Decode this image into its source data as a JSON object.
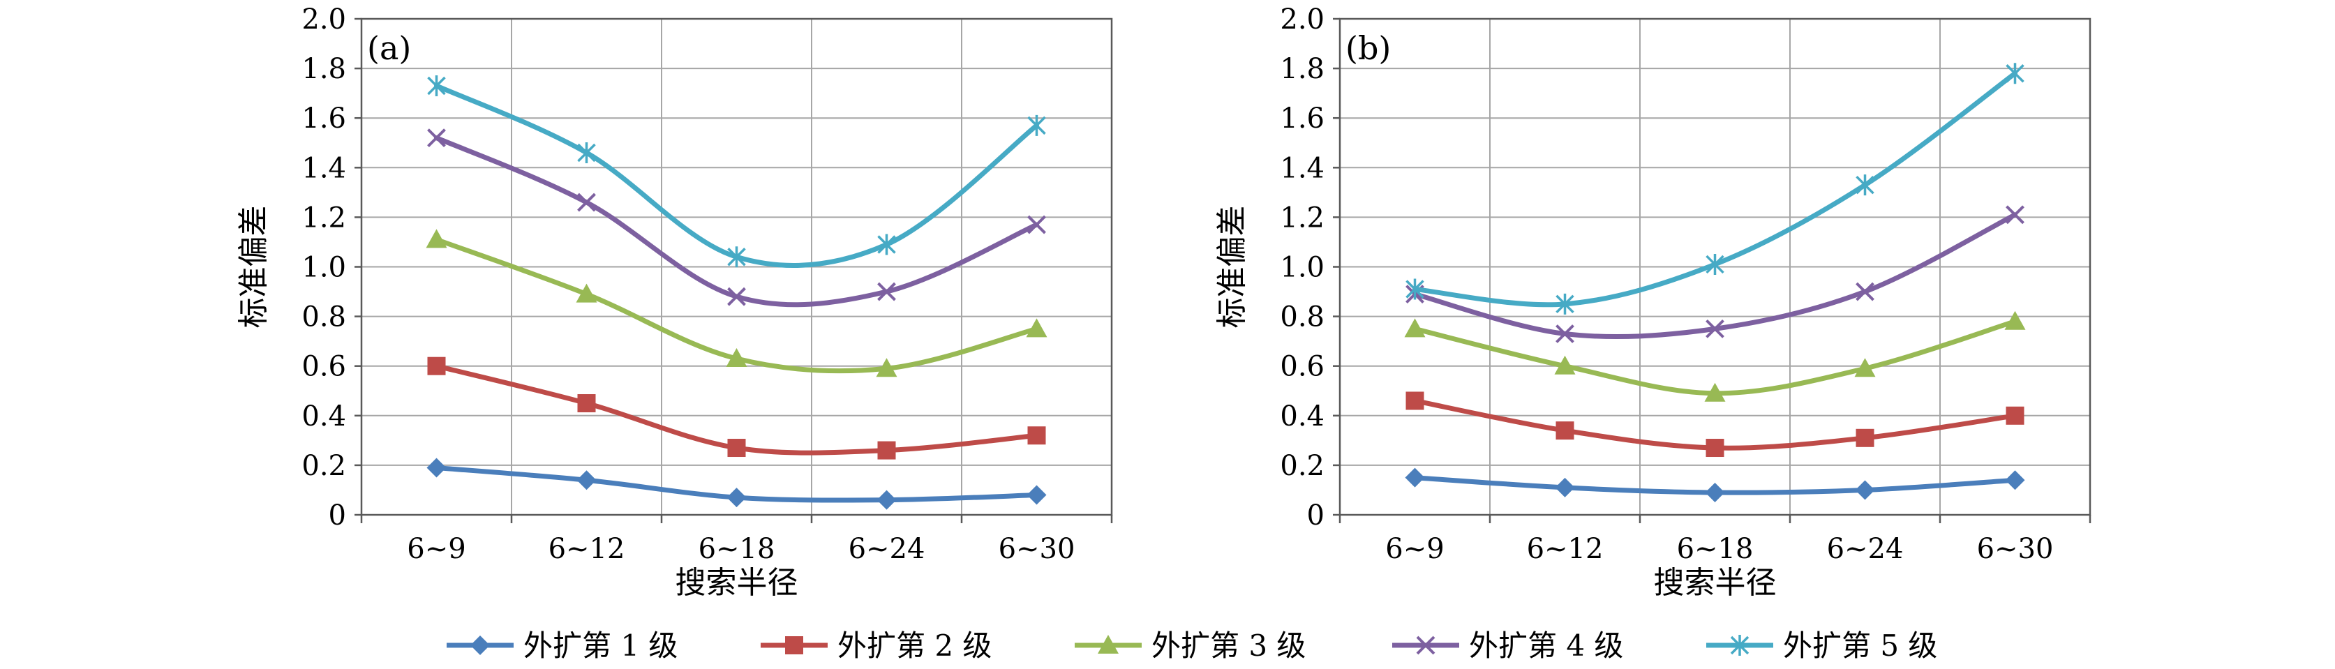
{
  "legend_placement": "bottom",
  "colors": {
    "series1": "#4a7ebb",
    "series2": "#be4b48",
    "series3": "#98b954",
    "series4": "#7d60a0",
    "series5": "#46aac5",
    "grid": "#a6a6a6",
    "axis": "#595959"
  },
  "chart_data": [
    {
      "type": "line",
      "panel_label": "(a)",
      "xlabel": "搜索半径",
      "ylabel": "标准偏差",
      "categories": [
        "6~9",
        "6~12",
        "6~18",
        "6~24",
        "6~30"
      ],
      "ylim": [
        0,
        2.0
      ],
      "yticks": [
        "0",
        "0.2",
        "0.4",
        "0.6",
        "0.8",
        "1.0",
        "1.2",
        "1.4",
        "1.6",
        "1.8",
        "2.0"
      ],
      "grid": true,
      "series": [
        {
          "name": "外扩第 1 级",
          "marker": "diamond",
          "values": [
            0.19,
            0.14,
            0.07,
            0.06,
            0.08
          ]
        },
        {
          "name": "外扩第 2 级",
          "marker": "square",
          "values": [
            0.6,
            0.45,
            0.27,
            0.26,
            0.32
          ]
        },
        {
          "name": "外扩第 3 级",
          "marker": "triangle",
          "values": [
            1.11,
            0.89,
            0.63,
            0.59,
            0.75
          ]
        },
        {
          "name": "外扩第 4 级",
          "marker": "x",
          "values": [
            1.52,
            1.26,
            0.88,
            0.9,
            1.17
          ]
        },
        {
          "name": "外扩第 5 级",
          "marker": "star",
          "values": [
            1.73,
            1.46,
            1.04,
            1.09,
            1.57
          ]
        }
      ]
    },
    {
      "type": "line",
      "panel_label": "(b)",
      "xlabel": "搜索半径",
      "ylabel": "标准偏差",
      "categories": [
        "6~9",
        "6~12",
        "6~18",
        "6~24",
        "6~30"
      ],
      "ylim": [
        0,
        2.0
      ],
      "yticks": [
        "0",
        "0.2",
        "0.4",
        "0.6",
        "0.8",
        "1.0",
        "1.2",
        "1.4",
        "1.6",
        "1.8",
        "2.0"
      ],
      "grid": true,
      "series": [
        {
          "name": "外扩第 1 级",
          "marker": "diamond",
          "values": [
            0.15,
            0.11,
            0.09,
            0.1,
            0.14
          ]
        },
        {
          "name": "外扩第 2 级",
          "marker": "square",
          "values": [
            0.46,
            0.34,
            0.27,
            0.31,
            0.4
          ]
        },
        {
          "name": "外扩第 3 级",
          "marker": "triangle",
          "values": [
            0.75,
            0.6,
            0.49,
            0.59,
            0.78
          ]
        },
        {
          "name": "外扩第 4 级",
          "marker": "x",
          "values": [
            0.89,
            0.73,
            0.75,
            0.9,
            1.21
          ]
        },
        {
          "name": "外扩第 5 级",
          "marker": "star",
          "values": [
            0.91,
            0.85,
            1.01,
            1.33,
            1.78
          ]
        }
      ]
    }
  ]
}
